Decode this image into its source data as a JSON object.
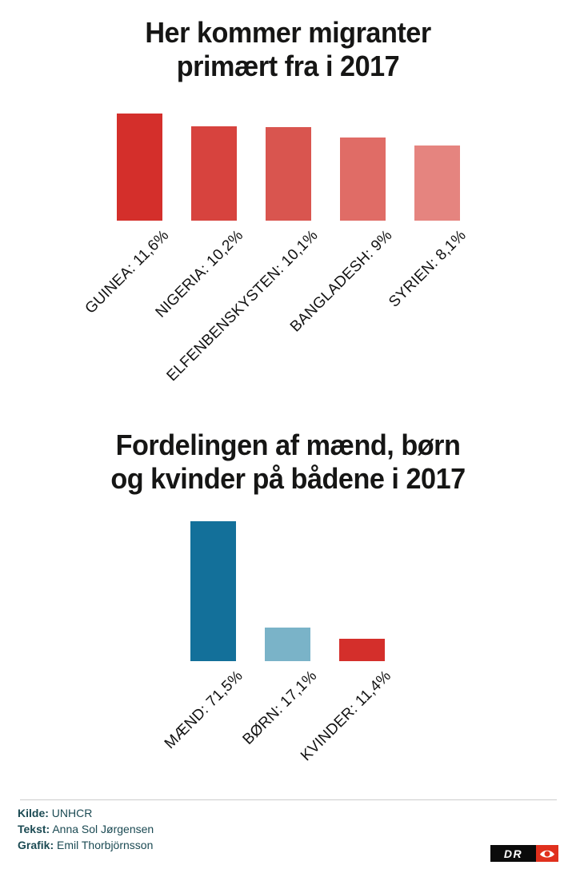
{
  "page": {
    "background": "#ffffff"
  },
  "chart_data": [
    {
      "type": "bar",
      "title": "Her kommer migranter primært fra i 2017",
      "title_lines": [
        "Her kommer migranter",
        "primært fra i 2017"
      ],
      "categories": [
        "GUINEA",
        "NIGERIA",
        "ELFENBENSKYSTEN",
        "BANGLADESH",
        "SYRIEN"
      ],
      "values": [
        11.6,
        10.2,
        10.1,
        9,
        8.1
      ],
      "labels": [
        "GUINEA: 11,6%",
        "NIGERIA: 10,2%",
        "ELFENBENSKYSTEN: 10,1%",
        "BANGLADESH: 9%",
        "SYRIEN: 8,1%"
      ],
      "bar_colors": [
        "#d42f2b",
        "#d7433e",
        "#d9554f",
        "#e06c66",
        "#e5847f"
      ],
      "value_suffix": "%",
      "ylim": [
        0,
        12
      ],
      "grid": false,
      "legend": "none",
      "label_rotation_deg": 45
    },
    {
      "type": "bar",
      "title": "Fordelingen af mænd, børn og kvinder på bådene i 2017",
      "title_lines": [
        "Fordelingen af mænd, børn",
        "og kvinder på bådene i 2017"
      ],
      "categories": [
        "MÆND",
        "BØRN",
        "KVINDER"
      ],
      "values": [
        71.5,
        17.1,
        11.4
      ],
      "labels": [
        "MÆND: 71,5%",
        "BØRN: 17,1%",
        "KVINDER: 11,4%"
      ],
      "bar_colors": [
        "#13709a",
        "#7ab3c8",
        "#d42f2b"
      ],
      "value_suffix": "%",
      "ylim": [
        0,
        75
      ],
      "grid": false,
      "legend": "none",
      "label_rotation_deg": 45
    }
  ],
  "footer": {
    "text_color": "#1b4a53",
    "credits": [
      {
        "label": "Kilde:",
        "value": "UNHCR"
      },
      {
        "label": "Tekst:",
        "value": "Anna Sol Jørgensen"
      },
      {
        "label": "Grafik:",
        "value": "Emil Thorbjörnsson"
      }
    ],
    "logo": {
      "text": "DR",
      "black_color": "#0b0b0b",
      "red_color": "#e0301d"
    }
  }
}
